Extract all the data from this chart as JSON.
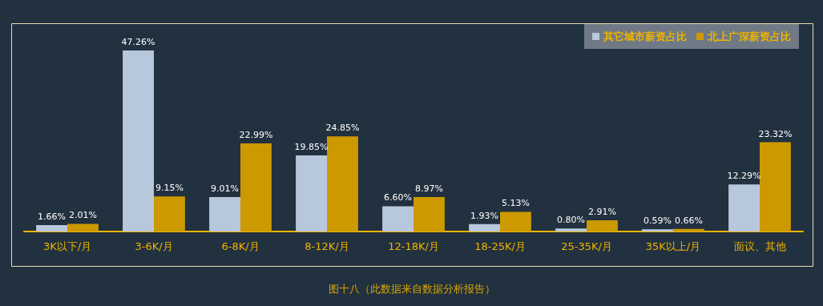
{
  "chart_data": {
    "type": "bar",
    "categories": [
      "3K以下/月",
      "3-6K/月",
      "6-8K/月",
      "8-12K/月",
      "12-18K/月",
      "18-25K/月",
      "25-35K/月",
      "35K以上/月",
      "面议、其他"
    ],
    "series": [
      {
        "name": "其它城市薪资占比",
        "color": "#b8c8dc",
        "values": [
          1.66,
          47.26,
          9.01,
          19.85,
          6.6,
          1.93,
          0.8,
          0.59,
          12.29
        ],
        "value_labels": [
          "1.66%",
          "47.26%",
          "9.01%",
          "19.85%",
          "6.60%",
          "1.93%",
          "0.80%",
          "0.59%",
          "12.29%"
        ]
      },
      {
        "name": "北上广深薪资占比",
        "color": "#cc9900",
        "values": [
          2.01,
          9.15,
          22.99,
          24.85,
          8.97,
          5.13,
          2.91,
          0.66,
          23.32
        ],
        "value_labels": [
          "2.01%",
          "9.15%",
          "22.99%",
          "24.85%",
          "8.97%",
          "5.13%",
          "2.91%",
          "0.66%",
          "23.32%"
        ]
      }
    ],
    "legend": "top right",
    "annotations": [
      "图十八（此数据来自数据分析报告）"
    ]
  }
}
